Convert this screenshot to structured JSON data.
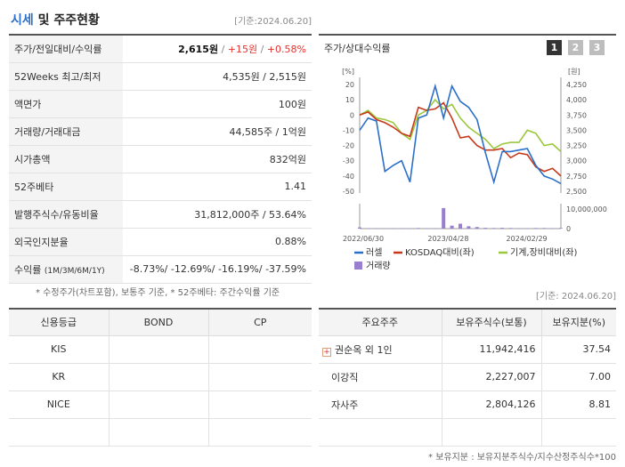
{
  "header": {
    "title_main": "시세",
    "title_rest": " 및 주주현황",
    "date": "[기준:2024.06.20]"
  },
  "quote": {
    "price_row": {
      "label": "주가/전일대비/수익률",
      "price": "2,615원",
      "sep1": " / ",
      "change": "+15원",
      "sep2": " / ",
      "pct": "+0.58%"
    },
    "rows": [
      {
        "label": "52Weeks 최고/최저",
        "value": "4,535원 / 2,515원"
      },
      {
        "label": "액면가",
        "value": "100원"
      },
      {
        "label": "거래량/거래대금",
        "value": "44,585주 / 1억원"
      },
      {
        "label": "시가총액",
        "value": "832억원"
      },
      {
        "label": "52주베타",
        "value": "1.41"
      },
      {
        "label": "발행주식수/유동비율",
        "value": "31,812,000주 / 53.64%"
      },
      {
        "label": "외국인지분율",
        "value": "0.88%"
      }
    ],
    "returns_row": {
      "label": "수익률",
      "label_sub": "(1M/3M/6M/1Y)",
      "values": "-8.73%/ -12.69%/ -16.19%/ -37.59%"
    }
  },
  "notes": {
    "left": "* 수정주가(차트포함), 보통주 기준, * 52주베타: 주간수익률 기준",
    "right": "[기준: 2024.06.20]",
    "bottom": "* 보유지분 : 보유지분주식수/지수산정주식수*100"
  },
  "chart": {
    "title": "주가/상대수익률",
    "pages": [
      "1",
      "2",
      "3"
    ],
    "left_unit": "[%]",
    "right_unit": "[원]",
    "left_ticks": [
      "20",
      "10",
      "0",
      "-10",
      "-20",
      "-30",
      "-40",
      "-50"
    ],
    "right_ticks": [
      "4,250",
      "4,000",
      "3,750",
      "3,500",
      "3,250",
      "3,000",
      "2,750",
      "2,500"
    ],
    "vol_tick_top": "10,000,000",
    "vol_tick_zero": "0",
    "x_ticks": [
      "2022/06/30",
      "2023/04/28",
      "2024/02/29"
    ],
    "legend": [
      "러셀",
      "KOSDAQ대비(좌)",
      "기계,장비대비(좌)",
      "거래량"
    ],
    "colors": {
      "russell": "#2a6fc9",
      "kosdaq": "#c63a1c",
      "machine": "#9bc73c",
      "volume": "#9a7fd1"
    }
  },
  "chart_data": {
    "type": "line",
    "x": [
      "2022/06",
      "2022/07",
      "2022/08",
      "2022/09",
      "2022/10",
      "2022/11",
      "2022/12",
      "2023/01",
      "2023/02",
      "2023/03",
      "2023/04",
      "2023/05",
      "2023/06",
      "2023/07",
      "2023/08",
      "2023/09",
      "2023/10",
      "2023/11",
      "2023/12",
      "2024/01",
      "2024/02",
      "2024/03",
      "2024/04",
      "2024/05",
      "2024/06"
    ],
    "series": [
      {
        "name": "러셀",
        "axis": "left",
        "values": [
          -10,
          -2,
          -4,
          -37,
          -33,
          -30,
          -44,
          -2,
          0,
          19,
          -2,
          19,
          9,
          5,
          -3,
          -25,
          -44,
          -24,
          -24,
          -23,
          -22,
          -33,
          -40,
          -42,
          -45
        ]
      },
      {
        "name": "KOSDAQ대비(좌)",
        "axis": "left",
        "values": [
          0,
          2,
          -3,
          -5,
          -8,
          -12,
          -14,
          5,
          3,
          4,
          8,
          -2,
          -15,
          -14,
          -20,
          -23,
          -23,
          -22,
          -28,
          -25,
          -26,
          -34,
          -37,
          -35,
          -40
        ]
      },
      {
        "name": "기계,장비대비(좌)",
        "axis": "left",
        "values": [
          0,
          3,
          -2,
          -3,
          -5,
          -12,
          -16,
          0,
          3,
          10,
          4,
          7,
          -2,
          -8,
          -12,
          -16,
          -22,
          -19,
          -18,
          -18,
          -10,
          -12,
          -20,
          -19,
          -24
        ]
      },
      {
        "name": "거래량",
        "axis": "volume",
        "values": [
          600000,
          200000,
          200000,
          150000,
          150000,
          200000,
          150000,
          300000,
          200000,
          200000,
          10500000,
          1500000,
          2500000,
          1200000,
          800000,
          400000,
          300000,
          400000,
          300000,
          200000,
          200000,
          300000,
          300000,
          200000,
          300000
        ]
      }
    ],
    "ylim_left": [
      -50,
      20
    ],
    "ylim_right": [
      2500,
      4250
    ],
    "ylim_volume": [
      0,
      10000000
    ],
    "legend_position": "bottom"
  },
  "credit": {
    "headers": [
      "신용등급",
      "BOND",
      "CP"
    ],
    "rows": [
      [
        "KIS",
        "",
        ""
      ],
      [
        "KR",
        "",
        ""
      ],
      [
        "NICE",
        "",
        ""
      ],
      [
        "",
        "",
        ""
      ]
    ]
  },
  "holders": {
    "headers": [
      "주요주주",
      "보유주식수(보통)",
      "보유지분(%)"
    ],
    "rows": [
      {
        "name": "권순옥 외 1인",
        "shares": "11,942,416",
        "pct": "37.54",
        "expand": "+"
      },
      {
        "name": "이강직",
        "shares": "2,227,007",
        "pct": "7.00"
      },
      {
        "name": "자사주",
        "shares": "2,804,126",
        "pct": "8.81"
      },
      {
        "name": "",
        "shares": "",
        "pct": ""
      }
    ]
  }
}
